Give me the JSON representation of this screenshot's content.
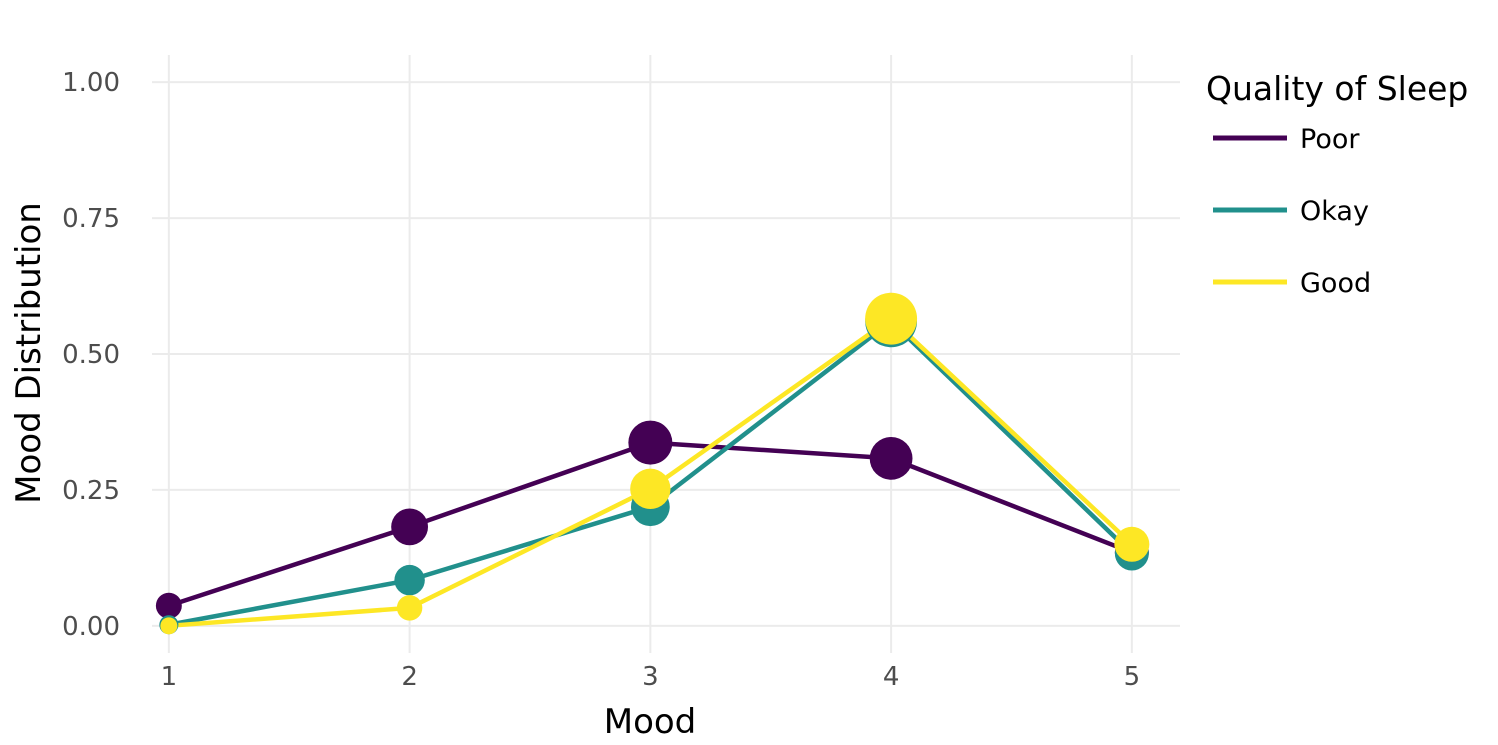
{
  "chart_data": {
    "type": "line",
    "title": "",
    "xlabel": "Mood",
    "ylabel": "Mood Distribution",
    "x": [
      1,
      2,
      3,
      4,
      5
    ],
    "x_tick_labels": [
      "1",
      "2",
      "3",
      "4",
      "5"
    ],
    "y_tick_labels": [
      "0.00",
      "0.25",
      "0.50",
      "0.75",
      "1.00"
    ],
    "y_ticks": [
      0,
      0.25,
      0.5,
      0.75,
      1.0
    ],
    "xlim": [
      0.93,
      5.2
    ],
    "ylim": [
      -0.05,
      1.05
    ],
    "grid": true,
    "legend": {
      "title": "Quality of Sleep",
      "placement": "right"
    },
    "point_size_encodes": "value",
    "series": [
      {
        "name": "Poor",
        "color": "#440154",
        "values": [
          0.037,
          0.182,
          0.337,
          0.308,
          0.135
        ]
      },
      {
        "name": "Okay",
        "color": "#21908C",
        "values": [
          0.002,
          0.084,
          0.219,
          0.56,
          0.133
        ]
      },
      {
        "name": "Good",
        "color": "#FDE725",
        "values": [
          0.0,
          0.033,
          0.252,
          0.565,
          0.15
        ]
      }
    ]
  }
}
